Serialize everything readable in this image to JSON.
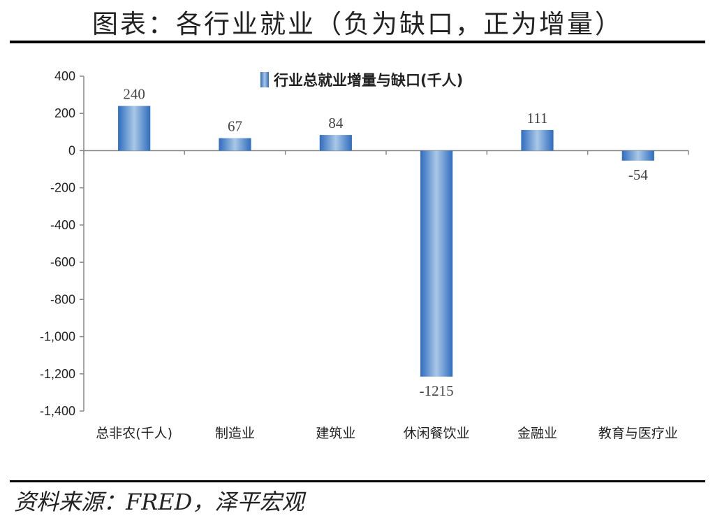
{
  "header": {
    "title": "图表：各行业就业（负为缺口，正为增量）"
  },
  "footer": {
    "source": "资料来源：FRED，泽平宏观"
  },
  "colors": {
    "bar_edge": "#2f6cbf",
    "bar_mid": "#a9c8e6",
    "axis": "#888888"
  },
  "chart_data": {
    "type": "bar",
    "categories": [
      "总非农(千人)",
      "制造业",
      "建筑业",
      "休闲餐饮业",
      "金融业",
      "教育与医疗业"
    ],
    "series": [
      {
        "name": "行业总就业增量与缺口(千人)",
        "values": [
          240,
          67,
          84,
          -1215,
          111,
          -54
        ]
      }
    ],
    "data_labels": [
      "240",
      "67",
      "84",
      "-1215",
      "111",
      "-54"
    ],
    "ylim": [
      -1400,
      400
    ],
    "yticks": [
      400,
      200,
      0,
      -200,
      -400,
      -600,
      -800,
      -1000,
      -1200,
      -1400
    ],
    "ytick_labels": [
      "400",
      "200",
      "0",
      "-200",
      "-400",
      "-600",
      "-800",
      "-1,000",
      "-1,200",
      "-1,400"
    ],
    "legend_position": "top-center",
    "grid": false
  }
}
